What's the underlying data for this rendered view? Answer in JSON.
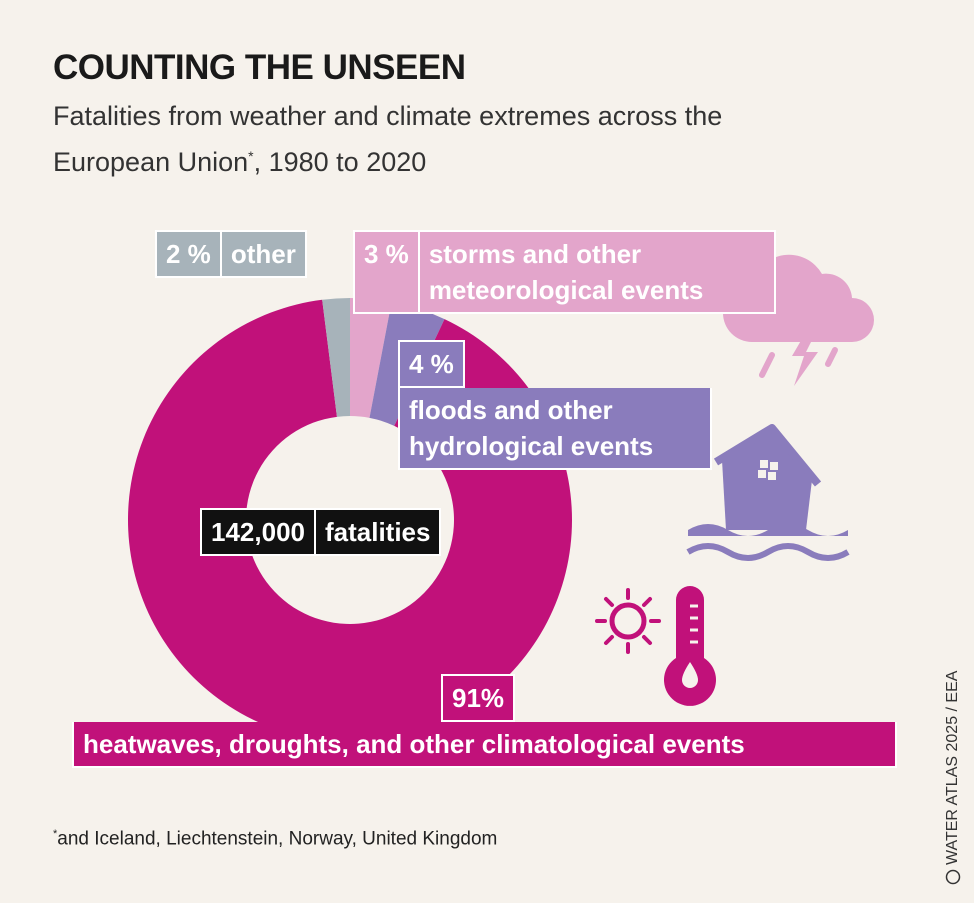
{
  "chart_data": {
    "type": "donut",
    "title": "COUNTING THE UNSEEN",
    "subtitle": "Fatalities from weather and climate extremes across the European Union",
    "subtitle_mark": "*",
    "subtitle_end": ", 1980 to 2020",
    "categories": [
      "storms and other meteorological events",
      "floods and other hydrological events",
      "heatwaves, droughts, and other climatological events",
      "other"
    ],
    "values": [
      3,
      4,
      91,
      2
    ],
    "value_labels": [
      "3 %",
      "4 %",
      "91%",
      "2 %"
    ],
    "colors": [
      "#e3a5cb",
      "#8a7cbc",
      "#c1117a",
      "#a7b3ba"
    ],
    "total": {
      "value": 142000,
      "label": "142,000"
    },
    "total_caption": "fatalities",
    "footnote_mark": "*",
    "footnote": "and Iceland, Liechtenstein, Norway, United Kingdom",
    "credit": "WATER ATLAS 2025 / EEA"
  }
}
